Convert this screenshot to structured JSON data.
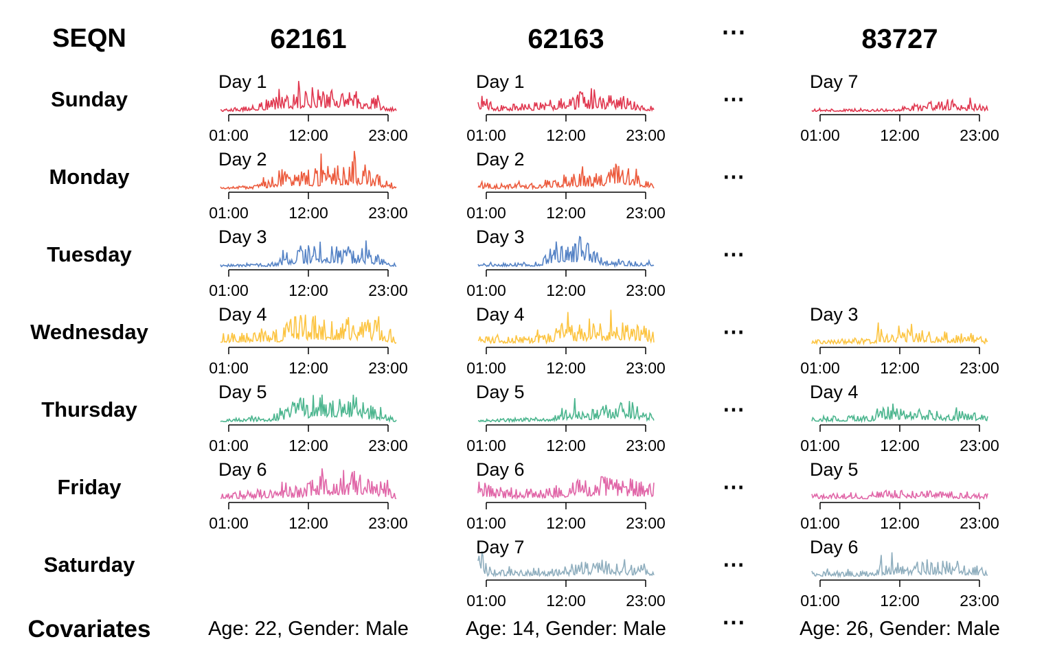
{
  "header": {
    "row_header_label": "SEQN",
    "columns": [
      "62161",
      "62163",
      "⋯",
      "83727"
    ]
  },
  "rows": [
    "Sunday",
    "Monday",
    "Tuesday",
    "Wednesday",
    "Thursday",
    "Friday",
    "Saturday"
  ],
  "covariates_label": "Covariates",
  "covariates": [
    "Age: 22, Gender: Male",
    "Age: 14, Gender: Male",
    "⋯",
    "Age: 26, Gender: Male"
  ],
  "ellipsis": "⋯",
  "colors": {
    "Sunday": "#e0374f",
    "Monday": "#ec5a3c",
    "Tuesday": "#5482c5",
    "Wednesday": "#fcc441",
    "Thursday": "#4bb58e",
    "Friday": "#e065a7",
    "Saturday": "#8faebe"
  },
  "chart_data": {
    "type": "line",
    "description_axis": {
      "x_ticks": [
        "01:00",
        "12:00",
        "23:00"
      ]
    },
    "panels": [
      {
        "seqn": "62161",
        "weekday": "Sunday",
        "day_label": "Day 1",
        "profile": [
          [
            0,
            0.05
          ],
          [
            20,
            0.08
          ],
          [
            60,
            0.25
          ],
          [
            90,
            0.4
          ],
          [
            120,
            0.45
          ],
          [
            150,
            0.3
          ],
          [
            180,
            0.05
          ]
        ]
      },
      {
        "seqn": "62161",
        "weekday": "Monday",
        "day_label": "Day 2",
        "profile": [
          [
            0,
            0.05
          ],
          [
            40,
            0.08
          ],
          [
            60,
            0.3
          ],
          [
            100,
            0.35
          ],
          [
            140,
            0.5
          ],
          [
            160,
            0.3
          ],
          [
            180,
            0.05
          ]
        ]
      },
      {
        "seqn": "62161",
        "weekday": "Tuesday",
        "day_label": "Day 3",
        "profile": [
          [
            0,
            0.04
          ],
          [
            50,
            0.06
          ],
          [
            70,
            0.25
          ],
          [
            100,
            0.4
          ],
          [
            150,
            0.3
          ],
          [
            180,
            0.05
          ]
        ]
      },
      {
        "seqn": "62161",
        "weekday": "Wednesday",
        "day_label": "Day 4",
        "profile": [
          [
            0,
            0.2
          ],
          [
            60,
            0.25
          ],
          [
            70,
            0.5
          ],
          [
            120,
            0.45
          ],
          [
            160,
            0.45
          ],
          [
            180,
            0.1
          ]
        ]
      },
      {
        "seqn": "62161",
        "weekday": "Thursday",
        "day_label": "Day 5",
        "profile": [
          [
            0,
            0.05
          ],
          [
            50,
            0.1
          ],
          [
            80,
            0.4
          ],
          [
            130,
            0.5
          ],
          [
            150,
            0.3
          ],
          [
            180,
            0.05
          ]
        ]
      },
      {
        "seqn": "62161",
        "weekday": "Friday",
        "day_label": "Day 6",
        "profile": [
          [
            0,
            0.1
          ],
          [
            80,
            0.2
          ],
          [
            100,
            0.5
          ],
          [
            150,
            0.45
          ],
          [
            180,
            0.1
          ]
        ]
      },
      {
        "seqn": "62163",
        "weekday": "Sunday",
        "day_label": "Day 1",
        "profile": [
          [
            0,
            0.3
          ],
          [
            20,
            0.1
          ],
          [
            80,
            0.2
          ],
          [
            110,
            0.3
          ],
          [
            150,
            0.25
          ],
          [
            180,
            0.08
          ]
        ]
      },
      {
        "seqn": "62163",
        "weekday": "Monday",
        "day_label": "Day 2",
        "profile": [
          [
            0,
            0.1
          ],
          [
            60,
            0.1
          ],
          [
            80,
            0.25
          ],
          [
            120,
            0.3
          ],
          [
            150,
            0.5
          ],
          [
            180,
            0.1
          ]
        ]
      },
      {
        "seqn": "62163",
        "weekday": "Tuesday",
        "day_label": "Day 3",
        "profile": [
          [
            0,
            0.05
          ],
          [
            60,
            0.08
          ],
          [
            80,
            0.4
          ],
          [
            110,
            0.5
          ],
          [
            130,
            0.1
          ],
          [
            180,
            0.1
          ]
        ]
      },
      {
        "seqn": "62163",
        "weekday": "Wednesday",
        "day_label": "Day 4",
        "profile": [
          [
            0,
            0.15
          ],
          [
            70,
            0.15
          ],
          [
            80,
            0.35
          ],
          [
            160,
            0.4
          ],
          [
            180,
            0.2
          ]
        ]
      },
      {
        "seqn": "62163",
        "weekday": "Thursday",
        "day_label": "Day 5",
        "profile": [
          [
            0,
            0.05
          ],
          [
            70,
            0.08
          ],
          [
            100,
            0.35
          ],
          [
            120,
            0.2
          ],
          [
            150,
            0.45
          ],
          [
            180,
            0.1
          ]
        ]
      },
      {
        "seqn": "62163",
        "weekday": "Friday",
        "day_label": "Day 6",
        "profile": [
          [
            0,
            0.4
          ],
          [
            20,
            0.15
          ],
          [
            80,
            0.2
          ],
          [
            120,
            0.4
          ],
          [
            180,
            0.3
          ]
        ]
      },
      {
        "seqn": "62163",
        "weekday": "Saturday",
        "day_label": "Day 7",
        "profile": [
          [
            0,
            0.6
          ],
          [
            10,
            0.15
          ],
          [
            80,
            0.15
          ],
          [
            120,
            0.3
          ],
          [
            180,
            0.2
          ]
        ]
      },
      {
        "seqn": "83727",
        "weekday": "Sunday",
        "day_label": "Day 7",
        "profile": [
          [
            0,
            0.05
          ],
          [
            80,
            0.05
          ],
          [
            100,
            0.1
          ],
          [
            140,
            0.2
          ],
          [
            180,
            0.1
          ]
        ]
      },
      {
        "seqn": "83727",
        "weekday": "Wednesday",
        "day_label": "Day 3",
        "profile": [
          [
            0,
            0.08
          ],
          [
            60,
            0.1
          ],
          [
            70,
            0.25
          ],
          [
            160,
            0.2
          ],
          [
            180,
            0.1
          ]
        ]
      },
      {
        "seqn": "83727",
        "weekday": "Thursday",
        "day_label": "Day 4",
        "profile": [
          [
            0,
            0.1
          ],
          [
            60,
            0.1
          ],
          [
            70,
            0.25
          ],
          [
            180,
            0.15
          ]
        ]
      },
      {
        "seqn": "83727",
        "weekday": "Friday",
        "day_label": "Day 5",
        "profile": [
          [
            0,
            0.1
          ],
          [
            60,
            0.1
          ],
          [
            70,
            0.2
          ],
          [
            180,
            0.1
          ]
        ]
      },
      {
        "seqn": "83727",
        "weekday": "Saturday",
        "day_label": "Day 6",
        "profile": [
          [
            0,
            0.1
          ],
          [
            60,
            0.1
          ],
          [
            70,
            0.25
          ],
          [
            140,
            0.3
          ],
          [
            180,
            0.15
          ]
        ]
      }
    ]
  }
}
